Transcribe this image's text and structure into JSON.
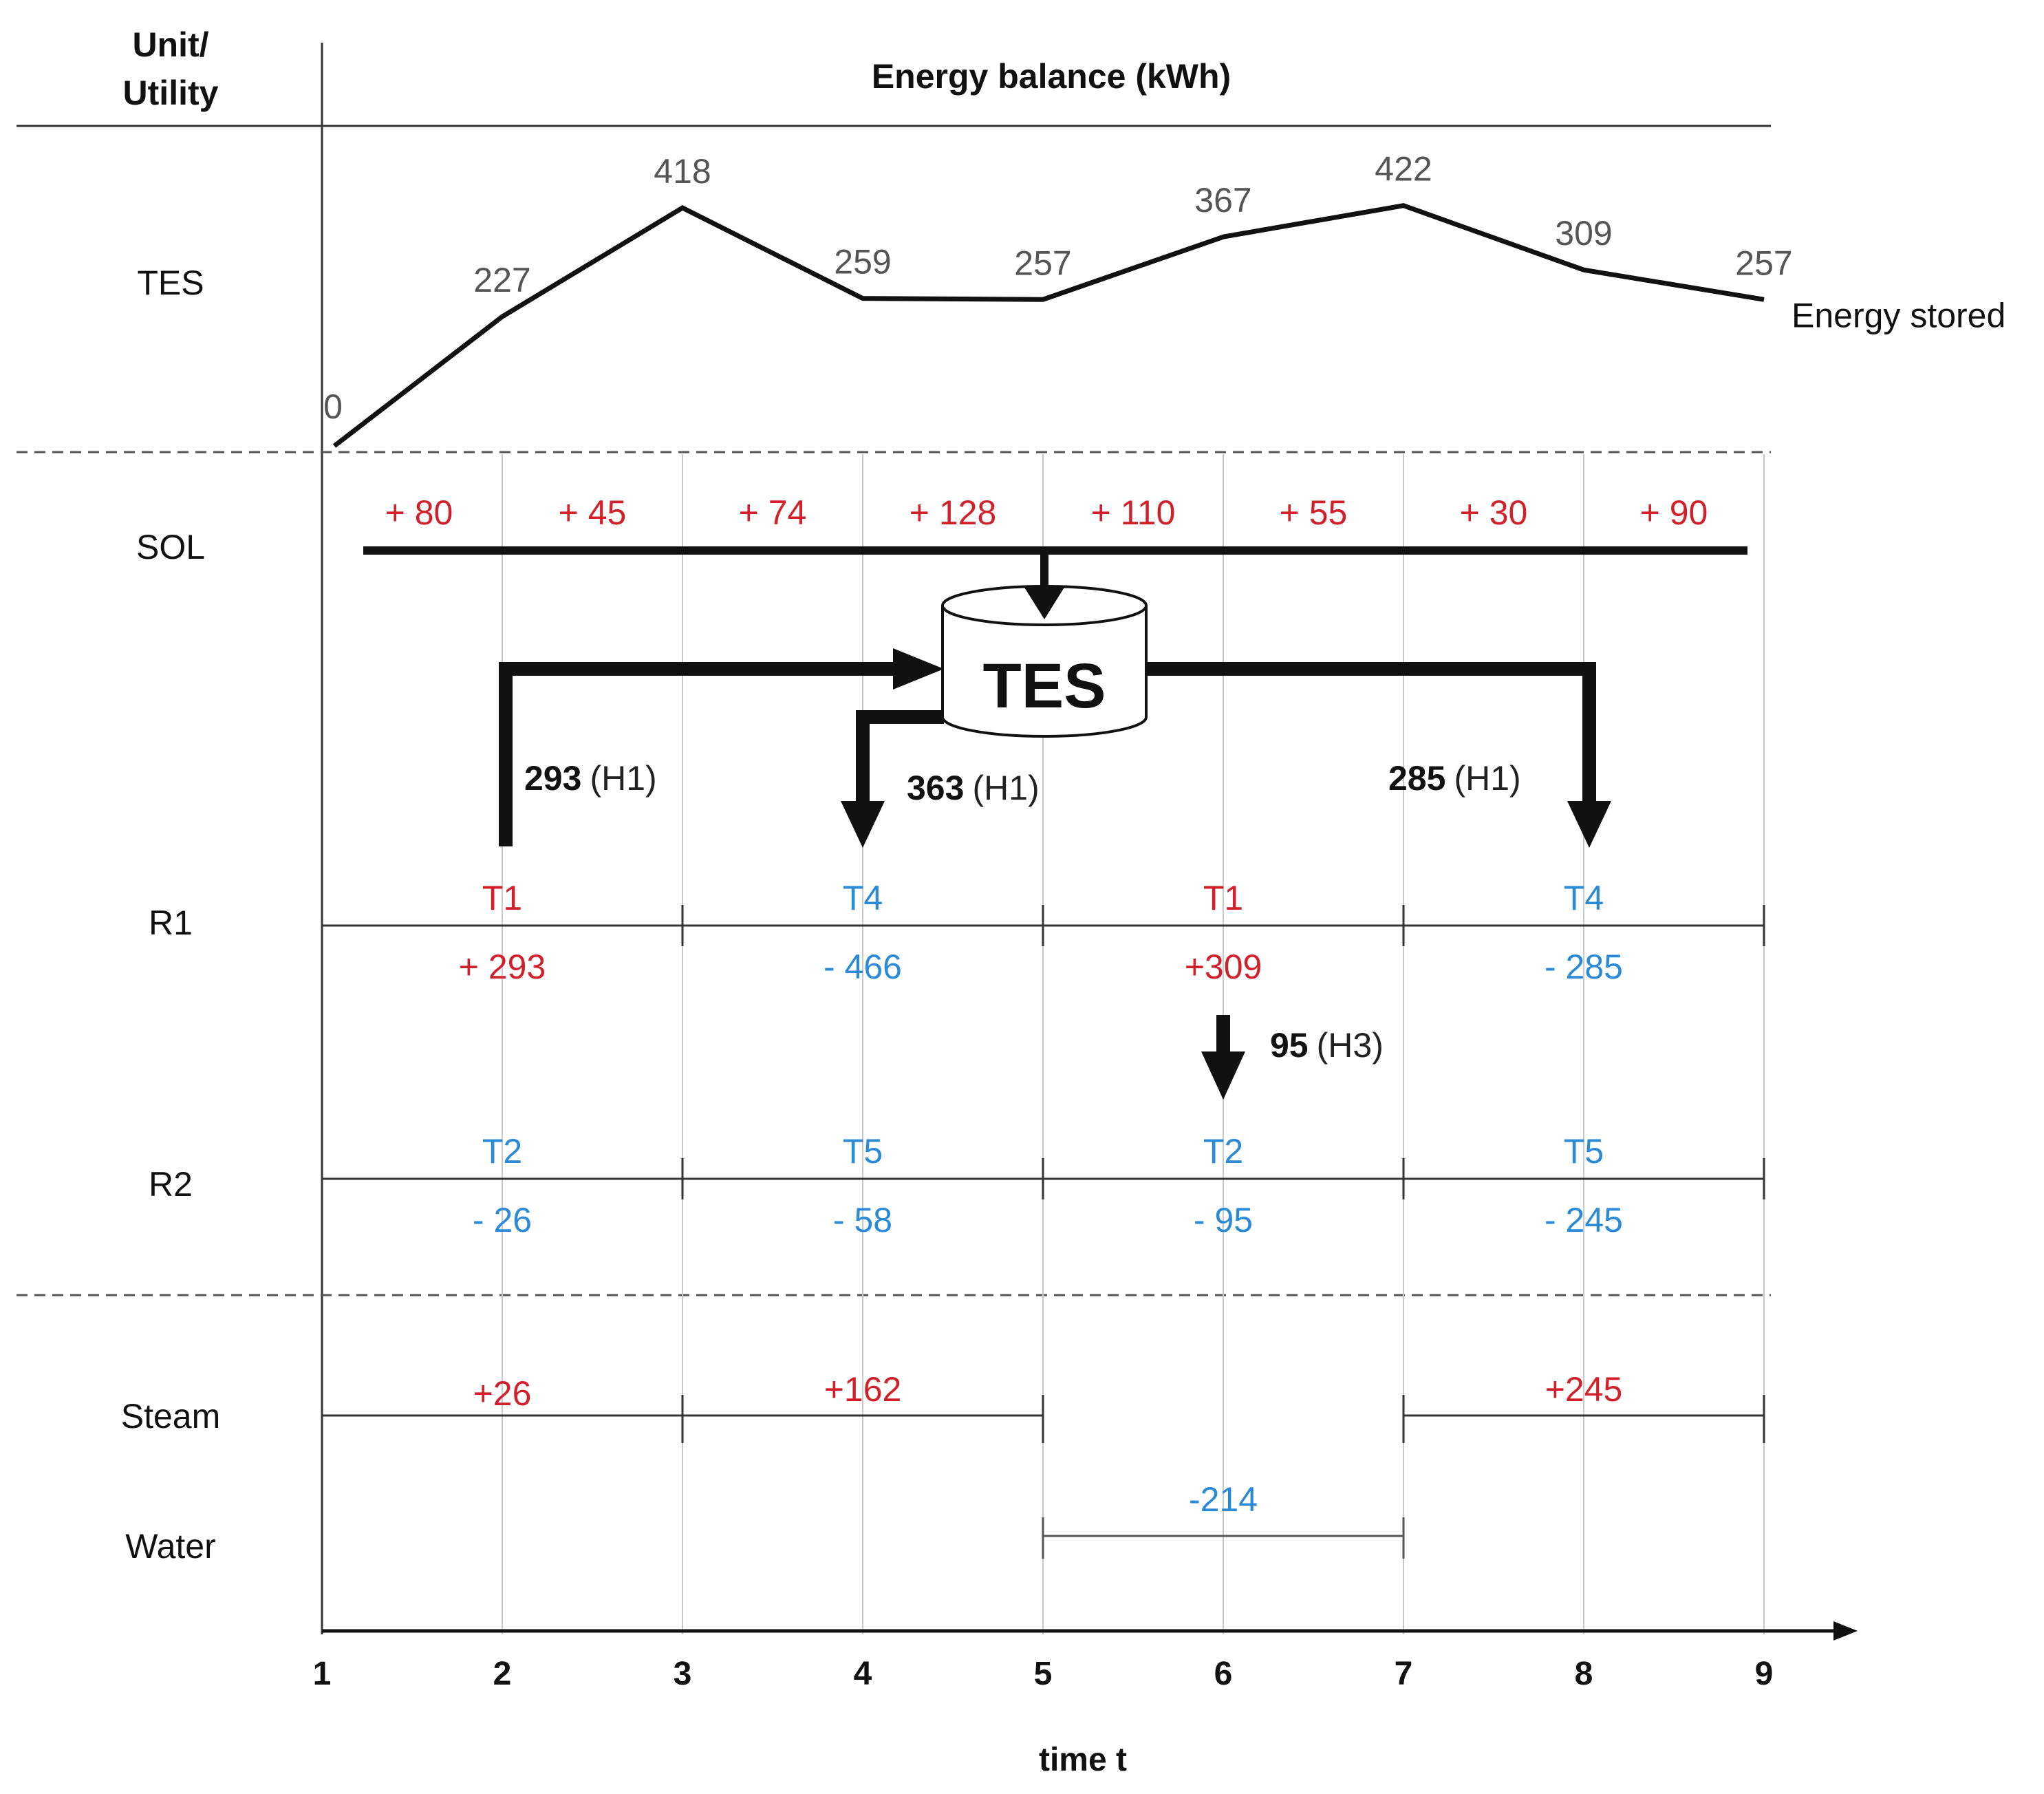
{
  "header": {
    "unit_label_line1": "Unit/",
    "unit_label_line2": "Utility",
    "title": "Energy balance (kWh)"
  },
  "rows": {
    "tes": "TES",
    "sol": "SOL",
    "r1": "R1",
    "r2": "R2",
    "steam": "Steam",
    "water": "Water"
  },
  "colors": {
    "positive": "#d0202a",
    "negative": "#2a8ad6",
    "line": "#111111",
    "grid": "#c8c8c8"
  },
  "axis": {
    "ticks": [
      "1",
      "2",
      "3",
      "4",
      "5",
      "6",
      "7",
      "8",
      "9"
    ],
    "label": "time t"
  },
  "chart_data": {
    "type": "line",
    "title": "Energy stored",
    "x": [
      1,
      2,
      3,
      4,
      5,
      6,
      7,
      8,
      9
    ],
    "values": [
      0,
      227,
      418,
      259,
      257,
      367,
      422,
      309,
      257
    ],
    "value_labels": [
      "0",
      "227",
      "418",
      "259",
      "257",
      "367",
      "422",
      "309",
      "257"
    ],
    "ylim": [
      0,
      450
    ],
    "series_label": "Energy stored"
  },
  "sol": {
    "values": [
      "+ 80",
      "+ 45",
      "+ 74",
      "+ 128",
      "+ 110",
      "+ 55",
      "+ 30",
      "+ 90"
    ]
  },
  "tes_tank": {
    "label": "TES"
  },
  "flows": {
    "in_left": {
      "value": "293",
      "tag": "(H1)"
    },
    "out_mid": {
      "value": "363",
      "tag": "(H1)"
    },
    "out_right": {
      "value": "285",
      "tag": "(H1)"
    },
    "r1_to_r2": {
      "value": "95",
      "tag": "(H3)"
    }
  },
  "r1": {
    "tasks": [
      {
        "name": "T1",
        "value": "+ 293",
        "sign": "positive"
      },
      {
        "name": "T4",
        "value": "- 466",
        "sign": "negative"
      },
      {
        "name": "T1",
        "value": "+309",
        "sign": "positive"
      },
      {
        "name": "T4",
        "value": "- 285",
        "sign": "negative"
      }
    ]
  },
  "r2": {
    "tasks": [
      {
        "name": "T2",
        "value": "- 26"
      },
      {
        "name": "T5",
        "value": "- 58"
      },
      {
        "name": "T2",
        "value": "- 95"
      },
      {
        "name": "T5",
        "value": "- 245"
      }
    ]
  },
  "steam": {
    "segments": [
      {
        "value": "+26"
      },
      {
        "value": "+162"
      },
      {
        "value": "+245"
      }
    ]
  },
  "water": {
    "segments": [
      {
        "value": "-214"
      }
    ]
  }
}
